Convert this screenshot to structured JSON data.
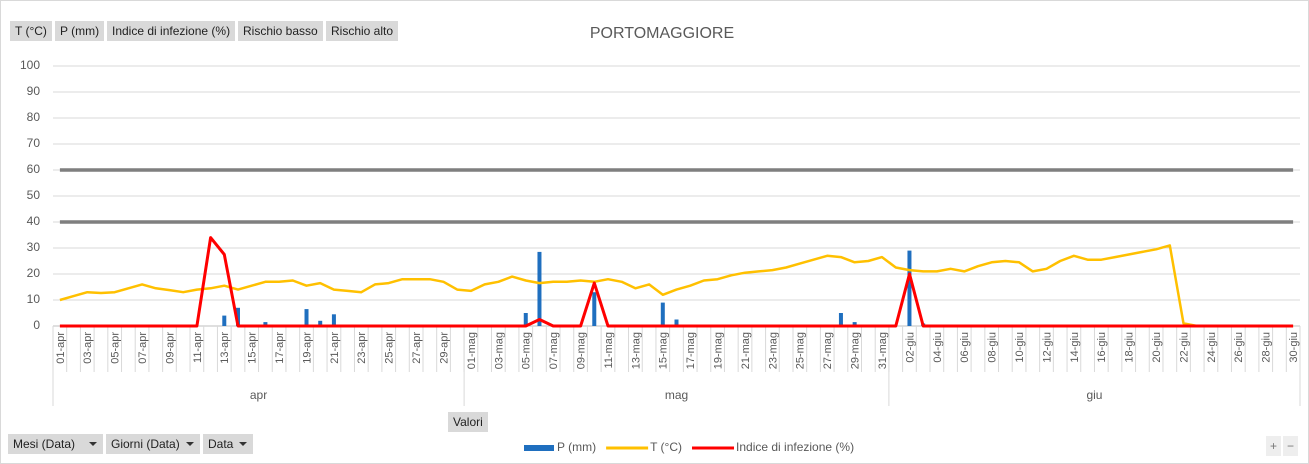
{
  "chart_data": {
    "type": "combo",
    "title": "PORTOMAGGIORE",
    "categories": [
      "01-apr",
      null,
      "03-apr",
      null,
      "05-apr",
      null,
      "07-apr",
      null,
      "09-apr",
      null,
      "11-apr",
      null,
      "13-apr",
      null,
      "15-apr",
      null,
      "17-apr",
      null,
      "19-apr",
      null,
      "21-apr",
      null,
      "23-apr",
      null,
      "25-apr",
      null,
      "27-apr",
      null,
      "29-apr",
      null,
      "01-mag",
      null,
      "03-mag",
      null,
      "05-mag",
      null,
      "07-mag",
      null,
      "09-mag",
      null,
      "11-mag",
      null,
      "13-mag",
      null,
      "15-mag",
      null,
      "17-mag",
      null,
      "19-mag",
      null,
      "21-mag",
      null,
      "23-mag",
      null,
      "25-mag",
      null,
      "27-mag",
      null,
      "29-mag",
      null,
      "31-mag",
      null,
      "02-giu",
      null,
      "04-giu",
      null,
      "06-giu",
      null,
      "08-giu",
      null,
      "10-giu",
      null,
      "12-giu",
      null,
      "14-giu",
      null,
      "16-giu",
      null,
      "18-giu",
      null,
      "20-giu",
      null,
      "22-giu",
      null,
      "24-giu",
      null,
      "26-giu",
      null,
      "28-giu",
      null,
      "30-giu"
    ],
    "months": [
      "apr",
      "apr",
      "apr",
      "apr",
      "apr",
      "apr",
      "apr",
      "apr",
      "apr",
      "apr",
      "apr",
      "apr",
      "apr",
      "apr",
      "apr",
      "apr",
      "apr",
      "apr",
      "apr",
      "apr",
      "apr",
      "apr",
      "apr",
      "apr",
      "apr",
      "apr",
      "apr",
      "apr",
      "apr",
      "apr",
      "mag",
      "mag",
      "mag",
      "mag",
      "mag",
      "mag",
      "mag",
      "mag",
      "mag",
      "mag",
      "mag",
      "mag",
      "mag",
      "mag",
      "mag",
      "mag",
      "mag",
      "mag",
      "mag",
      "mag",
      "mag",
      "mag",
      "mag",
      "mag",
      "mag",
      "mag",
      "mag",
      "mag",
      "mag",
      "mag",
      "mag",
      "giu",
      "giu",
      "giu",
      "giu",
      "giu",
      "giu",
      "giu",
      "giu",
      "giu",
      "giu",
      "giu",
      "giu",
      "giu",
      "giu",
      "giu",
      "giu",
      "giu",
      "giu",
      "giu",
      "giu",
      "giu",
      "giu",
      "giu",
      "giu",
      "giu",
      "giu",
      "giu",
      "giu",
      "giu",
      "giu"
    ],
    "series": [
      {
        "name": "T (°C)",
        "type": "line",
        "color": "#ffc000",
        "values": [
          10,
          11.5,
          13,
          12.7,
          13,
          14.5,
          16,
          14.5,
          13.8,
          13,
          14,
          14.5,
          15.5,
          14,
          15.5,
          17,
          17,
          17.5,
          15.5,
          16.5,
          14,
          13.5,
          13,
          16,
          16.5,
          18,
          18,
          18,
          17,
          14,
          13.5,
          16,
          17,
          19,
          17.5,
          16.5,
          17,
          17,
          17.5,
          17,
          18,
          17,
          14.5,
          16,
          12,
          14,
          15.5,
          17.5,
          18,
          19.5,
          20.5,
          21,
          21.5,
          22.5,
          24,
          25.5,
          27,
          26.5,
          24.5,
          25,
          26.5,
          22.5,
          21.5,
          21,
          21,
          22,
          21,
          23,
          24.5,
          25,
          24.5,
          21,
          22,
          25,
          27,
          25.5,
          25.5,
          26.5,
          27.5,
          28.5,
          29.5,
          31,
          1,
          0,
          0,
          0,
          0,
          0,
          0,
          0,
          0
        ]
      },
      {
        "name": "P (mm)",
        "type": "bar",
        "color": "#1f6fbf",
        "values": [
          0,
          0,
          0,
          0,
          0,
          0,
          0,
          0,
          0,
          0,
          0,
          0,
          4,
          7,
          0,
          1.5,
          0,
          0,
          6.5,
          2,
          4.5,
          0,
          0,
          0,
          0,
          0,
          0,
          0,
          0,
          0,
          0,
          0,
          0,
          0,
          5,
          28.5,
          0,
          0,
          0,
          13,
          0,
          0,
          0,
          0,
          9,
          2.5,
          0,
          0,
          0,
          0,
          0,
          0,
          0,
          0,
          0,
          0,
          0,
          5,
          1.5,
          0,
          0,
          0,
          29,
          1,
          0,
          0,
          0,
          0,
          0,
          0,
          0,
          0,
          0,
          0,
          0,
          0,
          0,
          0,
          0,
          0,
          0,
          0,
          0,
          0,
          0,
          0,
          0,
          0,
          0,
          0,
          0
        ]
      },
      {
        "name": "Indice di infezione (%)",
        "type": "line",
        "color": "#ff0000",
        "values": [
          0,
          0,
          0,
          0,
          0,
          0,
          0,
          0,
          0,
          0,
          0,
          34,
          27.5,
          0,
          0,
          0,
          0,
          0,
          0,
          0,
          0,
          0,
          0,
          0,
          0,
          0,
          0,
          0,
          0,
          0,
          0,
          0,
          0,
          0,
          0,
          2.5,
          0,
          0,
          0,
          16.5,
          0,
          0,
          0,
          0,
          0,
          0,
          0,
          0,
          0,
          0,
          0,
          0,
          0,
          0,
          0,
          0,
          0,
          0,
          0,
          0,
          0,
          0,
          20,
          0,
          0,
          0,
          0,
          0,
          0,
          0,
          0,
          0,
          0,
          0,
          0,
          0,
          0,
          0,
          0,
          0,
          0,
          0,
          0,
          0,
          0,
          0,
          0,
          0,
          0,
          0,
          0
        ]
      },
      {
        "name": "Rischio basso",
        "type": "line",
        "color": "#7f7f7f",
        "values": [
          40,
          40,
          40,
          40,
          40,
          40,
          40,
          40,
          40,
          40,
          40,
          40,
          40,
          40,
          40,
          40,
          40,
          40,
          40,
          40,
          40,
          40,
          40,
          40,
          40,
          40,
          40,
          40,
          40,
          40,
          40,
          40,
          40,
          40,
          40,
          40,
          40,
          40,
          40,
          40,
          40,
          40,
          40,
          40,
          40,
          40,
          40,
          40,
          40,
          40,
          40,
          40,
          40,
          40,
          40,
          40,
          40,
          40,
          40,
          40,
          40,
          40,
          40,
          40,
          40,
          40,
          40,
          40,
          40,
          40,
          40,
          40,
          40,
          40,
          40,
          40,
          40,
          40,
          40,
          40,
          40,
          40,
          40,
          40,
          40,
          40,
          40,
          40,
          40,
          40,
          40
        ]
      },
      {
        "name": "Rischio alto",
        "type": "line",
        "color": "#7f7f7f",
        "values": [
          60,
          60,
          60,
          60,
          60,
          60,
          60,
          60,
          60,
          60,
          60,
          60,
          60,
          60,
          60,
          60,
          60,
          60,
          60,
          60,
          60,
          60,
          60,
          60,
          60,
          60,
          60,
          60,
          60,
          60,
          60,
          60,
          60,
          60,
          60,
          60,
          60,
          60,
          60,
          60,
          60,
          60,
          60,
          60,
          60,
          60,
          60,
          60,
          60,
          60,
          60,
          60,
          60,
          60,
          60,
          60,
          60,
          60,
          60,
          60,
          60,
          60,
          60,
          60,
          60,
          60,
          60,
          60,
          60,
          60,
          60,
          60,
          60,
          60,
          60,
          60,
          60,
          60,
          60,
          60,
          60,
          60,
          60,
          60,
          60,
          60,
          60,
          60,
          60,
          60,
          60
        ]
      }
    ],
    "legend_order": [
      1,
      0,
      2
    ],
    "ylim": [
      0,
      100
    ],
    "yticks": [
      0,
      10,
      20,
      30,
      40,
      50,
      60,
      70,
      80,
      90,
      100
    ],
    "grid": true,
    "values_button": "Valori",
    "filter_buttons": [
      "Mesi (Data)",
      "Giorni (Data)",
      "Data"
    ],
    "zoom_buttons": [
      "+",
      "−"
    ]
  }
}
